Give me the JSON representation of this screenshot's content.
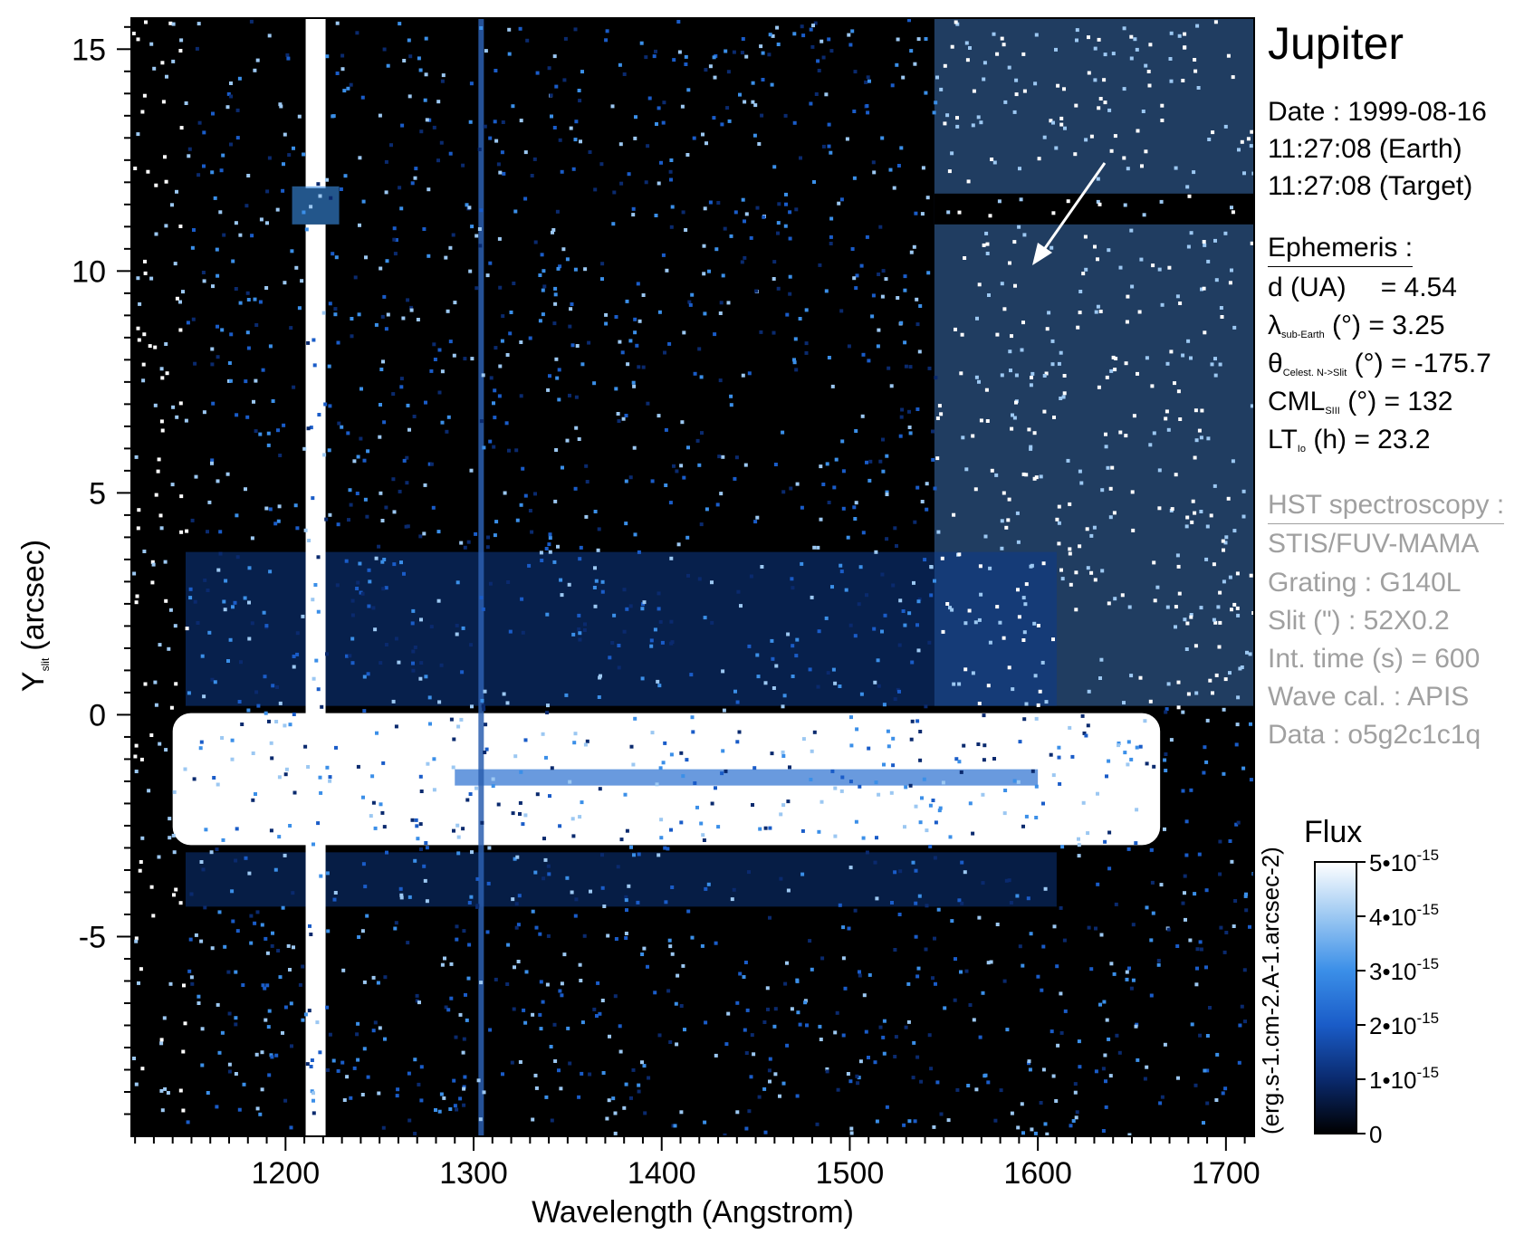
{
  "chart_data": {
    "type": "heatmap",
    "title": "Jupiter",
    "xlabel": "Wavelength (Angstrom)",
    "ylabel_main": "Y",
    "ylabel_sub": "slit",
    "ylabel_unit": "(arcsec)",
    "xlim": [
      1118,
      1715
    ],
    "ylim": [
      -9.5,
      15.7
    ],
    "x_ticks": [
      1200,
      1300,
      1400,
      1500,
      1600,
      1700
    ],
    "x_tick_labels": [
      "1200",
      "1300",
      "1400",
      "1500",
      "1600",
      "1700"
    ],
    "y_ticks": [
      -5,
      0,
      5,
      10,
      15
    ],
    "y_tick_labels": [
      "-5",
      "0",
      "5",
      "10",
      "15"
    ],
    "features": {
      "lyman_alpha_wavelength": 1216,
      "oi_line_wavelength": 1304,
      "disk_y_range": [
        -3.1,
        0.2
      ],
      "disk_center_y": -1.8,
      "gap_y": 11.5,
      "background_region_x_start": 1545
    },
    "colorbar": {
      "title": "Flux",
      "unit": "(erg.s-1.cm-2.A-1.arcsec-2)",
      "range": [
        0,
        5e-15
      ],
      "ticks": [
        0,
        1e-15,
        2e-15,
        3e-15,
        4e-15,
        5e-15
      ],
      "tick_labels": [
        {
          "base": "0",
          "exp": ""
        },
        {
          "base": "1•10",
          "exp": "-15"
        },
        {
          "base": "2•10",
          "exp": "-15"
        },
        {
          "base": "3•10",
          "exp": "-15"
        },
        {
          "base": "4•10",
          "exp": "-15"
        },
        {
          "base": "5•10",
          "exp": "-15"
        }
      ],
      "colors": [
        "#000000",
        "#0a2a6e",
        "#1a5cc8",
        "#3b8fe8",
        "#9cc8f2",
        "#ffffff"
      ]
    }
  },
  "info": {
    "date": "Date : 1999-08-16",
    "time_earth": "11:27:08 (Earth)",
    "time_target": "11:27:08 (Target)",
    "ephemeris_header": "Ephemeris :",
    "d_label": "d (UA)",
    "d_value": "= 4.54",
    "lambda_symbol": "λ",
    "lambda_sub": "sub-Earth",
    "lambda_value": "(°) = 3.25",
    "theta_symbol": "θ",
    "theta_sub": "Celest. N->Slit",
    "theta_value": "(°) = -175.7",
    "cml_symbol": "CML",
    "cml_sub": "SIII",
    "cml_value": "(°) = 132",
    "lt_symbol": "LT",
    "lt_sub": "Io",
    "lt_value": "(h) = 23.2",
    "hst_header": "HST spectroscopy :",
    "instrument": "STIS/FUV-MAMA",
    "grating": "Grating : G140L",
    "slit": "Slit (\") : 52X0.2",
    "int_time": "Int. time (s) = 600",
    "wave_cal": "Wave cal. : APIS",
    "data_id": "Data : o5g2c1c1q"
  }
}
